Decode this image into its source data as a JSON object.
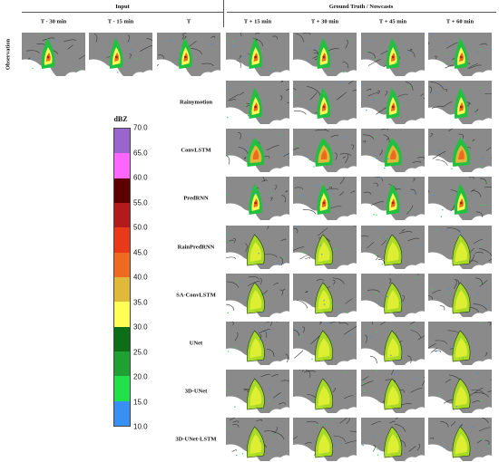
{
  "header": {
    "input_label": "Input",
    "gt_label": "Ground Truth / Nowcasts"
  },
  "time_labels": [
    "T - 30 min",
    "T - 15 min",
    "T",
    "T + 15 min",
    "T + 30 min",
    "T + 45 min",
    "T + 60 min"
  ],
  "row_labels": [
    "Observation",
    "Rainymotion",
    "ConvLSTM",
    "PredRNN",
    "RainPredRNN",
    "SA-ConvLSTM",
    "UNet",
    "3D-UNet",
    "3D-UNet-LSTM"
  ],
  "colorbar": {
    "title": "dBZ",
    "ticks": [
      "70.0",
      "65.0",
      "60.0",
      "55.0",
      "50.0",
      "45.0",
      "40.0",
      "35.0",
      "30.0",
      "25.0",
      "20.0",
      "15.0",
      "10.0"
    ],
    "colors_top_to_bottom": [
      "#9966cc",
      "#ff66ff",
      "#5c0000",
      "#b31a1a",
      "#e83a1a",
      "#ee6a20",
      "#f59a30",
      "#e0b83a",
      "#ffff55",
      "#0e6e18",
      "#1ea032",
      "#22e04a",
      "#3a8ff2"
    ]
  },
  "map_colors": {
    "background": "#8a8a8a",
    "sea": "#ffffff",
    "border": "#3a3a3a"
  }
}
